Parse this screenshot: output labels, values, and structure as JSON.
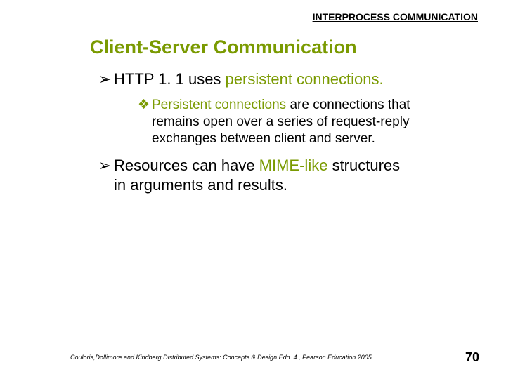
{
  "header": {
    "label": "INTERPROCESS COMMUNICATION"
  },
  "title": "Client-Server Communication",
  "bullets": {
    "b1_arrow": "➢",
    "b1_pre": "HTTP 1. 1 uses ",
    "b1_hl": "persistent connections.",
    "sub_diamond": "❖",
    "sub_hl": "Persistent connections ",
    "sub_rest1": "are connections that",
    "sub_line2": "remains open over a series of request-reply",
    "sub_line3": "exchanges between client and server.",
    "b2_arrow": "➢",
    "b2_pre": "Resources can have ",
    "b2_hl": "MIME-like",
    "b2_post": " structures",
    "b2_line2": "in arguments and results."
  },
  "footer": {
    "citation": "Couloris,Dollimore and Kindberg  Distributed Systems: Concepts & Design  Edn. 4 ,  Pearson Education 2005",
    "page": "70"
  },
  "colors": {
    "accent": "#7a9a01",
    "text": "#000000",
    "background": "#ffffff"
  }
}
